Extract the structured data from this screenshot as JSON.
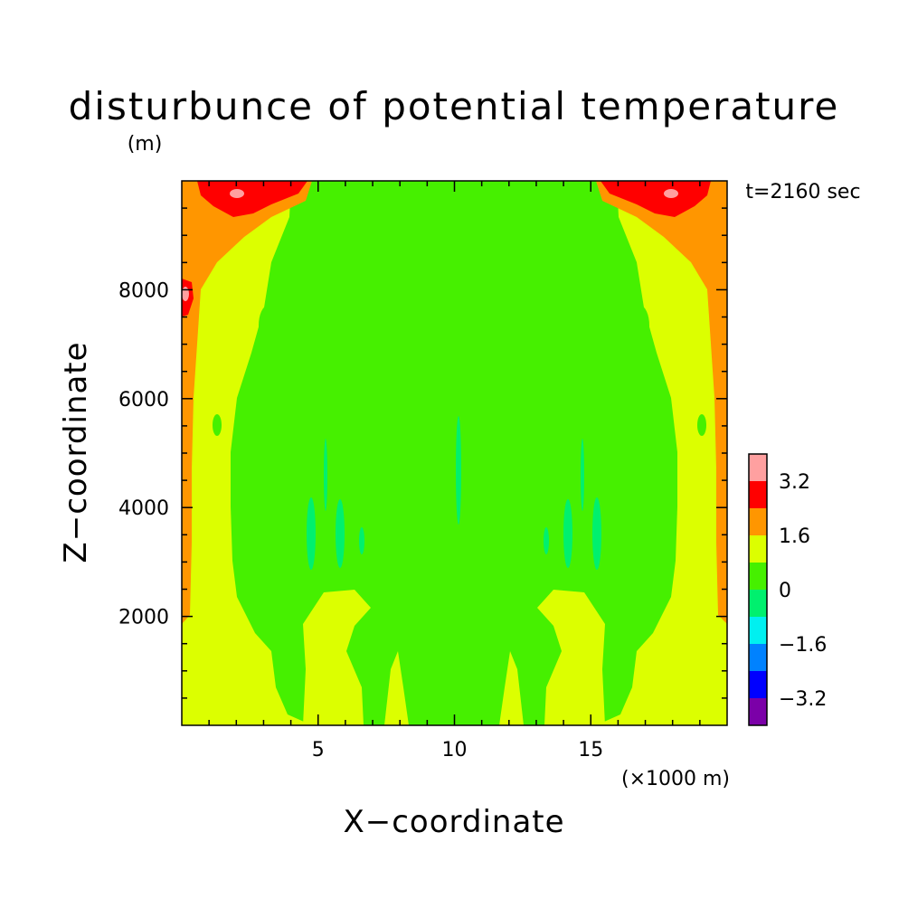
{
  "chart_data": {
    "type": "heatmap",
    "title": "disturbunce of potential temperature",
    "ylabel_unit": "(m)",
    "xlabel": "X−coordinate",
    "ylabel": "Z−coordinate",
    "xunit_note": "(×1000 m)",
    "time_label": "t=2160 sec",
    "xlim": [
      0,
      20000
    ],
    "ylim": [
      0,
      10000
    ],
    "x_ticks": [
      5000,
      10000,
      15000
    ],
    "x_tick_labels": [
      "5",
      "10",
      "15"
    ],
    "y_ticks": [
      2000,
      4000,
      6000,
      8000
    ],
    "y_tick_labels": [
      "2000",
      "4000",
      "6000",
      "8000"
    ],
    "colorbar": {
      "levels": [
        -4.0,
        -3.2,
        -2.4,
        -1.6,
        -0.8,
        0,
        0.8,
        1.6,
        2.4,
        3.2,
        4.0
      ],
      "labels": [
        "3.2",
        "1.6",
        "0",
        "−1.6",
        "−3.2"
      ],
      "label_values": [
        3.2,
        1.6,
        0,
        -1.6,
        -3.2
      ],
      "colors": [
        "#7b00a8",
        "#0000ff",
        "#0082ff",
        "#00f0f0",
        "#00f06e",
        "#46f000",
        "#dcff00",
        "#ff9600",
        "#ff0000",
        "#ffa0a0"
      ]
    },
    "regions": [
      {
        "name": "background",
        "value": 0.4,
        "band": "0 to 0.8"
      },
      {
        "name": "side-warm-zones",
        "value": 1.2,
        "band": "0.8 to 1.6"
      },
      {
        "name": "upper-corner-warm",
        "value": 2.0,
        "band": "1.6 to 2.4"
      },
      {
        "name": "top-corner-hot",
        "value": 2.8,
        "band": "2.4 to 3.2"
      },
      {
        "name": "top-corner-peaks",
        "value": 3.6,
        "band": "3.2 to 4.0"
      },
      {
        "name": "mid-level-cool-streaks",
        "value": -0.4,
        "band": "-0.8 to 0"
      }
    ]
  }
}
